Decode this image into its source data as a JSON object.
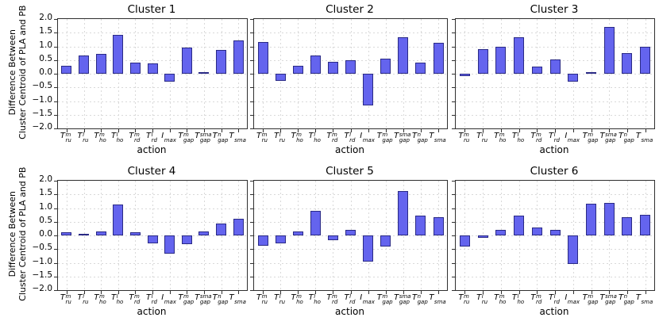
{
  "figure": {
    "ylabel_line1": "Difference Between",
    "ylabel_line2": "Cluster Centroid of PLA and PB",
    "xlabel": "action",
    "ytick_labels": [
      "2.0",
      "1.5",
      "1.0",
      "0.5",
      "0.0",
      "−0.5",
      "−1.0",
      "−1.5",
      "−2.0"
    ],
    "colors": {
      "bar_fill": "#6464ee",
      "bar_edge": "#2a2a85",
      "grid": "#d9d9d9",
      "spine": "#2f2f2f",
      "background": "#ffffff"
    }
  },
  "category_parts": [
    {
      "base": "T",
      "sup": "m",
      "sub": "ru"
    },
    {
      "base": "T",
      "sup": "l",
      "sub": "ru"
    },
    {
      "base": "T",
      "sup": "m",
      "sub": "ho"
    },
    {
      "base": "T",
      "sup": "l",
      "sub": "ho"
    },
    {
      "base": "T",
      "sup": "m",
      "sub": "rd"
    },
    {
      "base": "T",
      "sup": "l",
      "sub": "rd"
    },
    {
      "base": "I",
      "sup": "",
      "sub": "max"
    },
    {
      "base": "T",
      "sup": "m",
      "sub": "gap"
    },
    {
      "base": "T",
      "sup": "sma",
      "sub": "gap"
    },
    {
      "base": "T",
      "sup": "n",
      "sub": "gap"
    },
    {
      "base": "T",
      "sup": "",
      "sub": "sma"
    }
  ],
  "chart_data": [
    {
      "type": "bar",
      "title": "Cluster 1",
      "xlabel": "action",
      "ylabel": "Difference Between Cluster Centroid of PLA and PB",
      "ylim": [
        -2.0,
        2.0
      ],
      "yticks": [
        2.0,
        1.5,
        1.0,
        0.5,
        0.0,
        -0.5,
        -1.0,
        -1.5,
        -2.0
      ],
      "grid": true,
      "categories": [
        "T^m_ru",
        "T^l_ru",
        "T^m_ho",
        "T^l_ho",
        "T^m_rd",
        "T^l_rd",
        "I_max",
        "T^m_gap",
        "T^sma_gap",
        "T^n_gap",
        "T_sma"
      ],
      "values": [
        0.3,
        0.67,
        0.73,
        1.42,
        0.4,
        0.38,
        -0.28,
        0.95,
        0.02,
        0.86,
        1.22
      ]
    },
    {
      "type": "bar",
      "title": "Cluster 2",
      "xlabel": "action",
      "ylabel": "Difference Between Cluster Centroid of PLA and PB",
      "ylim": [
        -2.0,
        2.0
      ],
      "yticks": [
        2.0,
        1.5,
        1.0,
        0.5,
        0.0,
        -0.5,
        -1.0,
        -1.5,
        -2.0
      ],
      "grid": true,
      "categories": [
        "T^m_ru",
        "T^l_ru",
        "T^m_ho",
        "T^l_ho",
        "T^m_rd",
        "T^l_rd",
        "I_max",
        "T^m_gap",
        "T^sma_gap",
        "T^n_gap",
        "T_sma"
      ],
      "values": [
        1.15,
        -0.25,
        0.3,
        0.68,
        0.43,
        0.48,
        -1.15,
        0.55,
        1.33,
        0.4,
        1.13
      ]
    },
    {
      "type": "bar",
      "title": "Cluster 3",
      "xlabel": "action",
      "ylabel": "Difference Between Cluster Centroid of PLA and PB",
      "ylim": [
        -2.0,
        2.0
      ],
      "yticks": [
        2.0,
        1.5,
        1.0,
        0.5,
        0.0,
        -0.5,
        -1.0,
        -1.5,
        -2.0
      ],
      "grid": true,
      "categories": [
        "T^m_ru",
        "T^l_ru",
        "T^m_ho",
        "T^l_ho",
        "T^m_rd",
        "T^l_rd",
        "I_max",
        "T^m_gap",
        "T^sma_gap",
        "T^n_gap",
        "T_sma"
      ],
      "values": [
        -0.08,
        0.9,
        1.0,
        1.33,
        0.25,
        0.53,
        -0.3,
        0.05,
        1.7,
        0.76,
        1.0
      ]
    },
    {
      "type": "bar",
      "title": "Cluster 4",
      "xlabel": "action",
      "ylabel": "Difference Between Cluster Centroid of PLA and PB",
      "ylim": [
        -2.0,
        2.0
      ],
      "yticks": [
        2.0,
        1.5,
        1.0,
        0.5,
        0.0,
        -0.5,
        -1.0,
        -1.5,
        -2.0
      ],
      "grid": true,
      "categories": [
        "T^m_ru",
        "T^l_ru",
        "T^m_ho",
        "T^l_ho",
        "T^m_rd",
        "T^l_rd",
        "I_max",
        "T^m_gap",
        "T^sma_gap",
        "T^n_gap",
        "T_sma"
      ],
      "values": [
        0.13,
        0.05,
        0.15,
        1.13,
        0.13,
        -0.3,
        -0.67,
        -0.32,
        0.15,
        0.45,
        0.62
      ]
    },
    {
      "type": "bar",
      "title": "Cluster 5",
      "xlabel": "action",
      "ylabel": "Difference Between Cluster Centroid of PLA and PB",
      "ylim": [
        -2.0,
        2.0
      ],
      "yticks": [
        2.0,
        1.5,
        1.0,
        0.5,
        0.0,
        -0.5,
        -1.0,
        -1.5,
        -2.0
      ],
      "grid": true,
      "categories": [
        "T^m_ru",
        "T^l_ru",
        "T^m_ho",
        "T^l_ho",
        "T^m_rd",
        "T^l_rd",
        "I_max",
        "T^m_gap",
        "T^sma_gap",
        "T^n_gap",
        "T_sma"
      ],
      "values": [
        -0.38,
        -0.3,
        0.14,
        0.9,
        -0.18,
        0.2,
        -0.95,
        -0.4,
        1.62,
        0.72,
        0.66
      ]
    },
    {
      "type": "bar",
      "title": "Cluster 6",
      "xlabel": "action",
      "ylabel": "Difference Between Cluster Centroid of PLA and PB",
      "ylim": [
        -2.0,
        2.0
      ],
      "yticks": [
        2.0,
        1.5,
        1.0,
        0.5,
        0.0,
        -0.5,
        -1.0,
        -1.5,
        -2.0
      ],
      "grid": true,
      "categories": [
        "T^m_ru",
        "T^l_ru",
        "T^m_ho",
        "T^l_ho",
        "T^m_rd",
        "T^l_rd",
        "I_max",
        "T^m_gap",
        "T^sma_gap",
        "T^n_gap",
        "T_sma"
      ],
      "values": [
        -0.4,
        -0.08,
        0.2,
        0.72,
        0.3,
        0.2,
        -1.05,
        1.15,
        1.2,
        0.67,
        0.75
      ]
    }
  ]
}
